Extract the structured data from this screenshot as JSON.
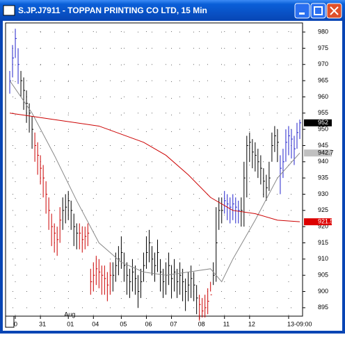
{
  "window": {
    "title": "S.JP.J7911 - TOPPAN PRINTING CO LTD, 15 Min"
  },
  "chart_data": {
    "type": "ohlc",
    "high": [
      968,
      976,
      981,
      975,
      968,
      966,
      962,
      958,
      954,
      949,
      946,
      942,
      939,
      934,
      929,
      924,
      921,
      920,
      926,
      929,
      930,
      931,
      928,
      924,
      921,
      921,
      920,
      920,
      921,
      907,
      909,
      911,
      910,
      908,
      908,
      906,
      909,
      909,
      912,
      914,
      917,
      912,
      909,
      907,
      910,
      908,
      905,
      907,
      912,
      917,
      919,
      914,
      912,
      916,
      910,
      907,
      909,
      912,
      908,
      910,
      907,
      909,
      907,
      904,
      906,
      908,
      906,
      902,
      899,
      898,
      899,
      901,
      903,
      909,
      926,
      929,
      929,
      931,
      930,
      929,
      930,
      929,
      928,
      929,
      940,
      948,
      949,
      947,
      946,
      944,
      942,
      938,
      936,
      940,
      949,
      951,
      950,
      942,
      944,
      950,
      951,
      950,
      948,
      952,
      953
    ],
    "low": [
      961,
      966,
      972,
      964,
      960,
      956,
      952,
      949,
      944,
      940,
      936,
      933,
      929,
      924,
      919,
      914,
      912,
      911,
      915,
      919,
      921,
      922,
      919,
      914,
      913,
      913,
      912,
      913,
      914,
      899,
      900,
      902,
      901,
      899,
      899,
      897,
      899,
      900,
      903,
      905,
      907,
      903,
      899,
      898,
      900,
      899,
      895,
      898,
      903,
      907,
      909,
      905,
      903,
      906,
      900,
      898,
      899,
      902,
      898,
      900,
      898,
      899,
      897,
      894,
      897,
      898,
      897,
      893,
      891,
      892,
      892,
      893,
      900,
      902,
      903,
      919,
      921,
      924,
      922,
      921,
      922,
      921,
      921,
      920,
      920,
      929,
      940,
      938,
      937,
      935,
      933,
      929,
      928,
      931,
      940,
      943,
      940,
      930,
      935,
      940,
      942,
      941,
      939,
      944,
      947
    ],
    "close": [
      965,
      972,
      978,
      970,
      965,
      962,
      958,
      955,
      950,
      945,
      942,
      938,
      935,
      930,
      925,
      920,
      918,
      916,
      922,
      925,
      926,
      928,
      925,
      920,
      918,
      918,
      916,
      917,
      918,
      903,
      905,
      907,
      906,
      905,
      904,
      902,
      905,
      905,
      908,
      910,
      912,
      908,
      905,
      903,
      906,
      904,
      900,
      903,
      908,
      912,
      915,
      910,
      908,
      912,
      906,
      903,
      905,
      908,
      904,
      906,
      903,
      905,
      903,
      900,
      902,
      904,
      902,
      898,
      896,
      894,
      895,
      897,
      899,
      905,
      915,
      925,
      925,
      928,
      927,
      926,
      927,
      926,
      925,
      925,
      935,
      945,
      946,
      943,
      942,
      940,
      938,
      934,
      932,
      935,
      945,
      948,
      946,
      938,
      940,
      946,
      948,
      947,
      944,
      949,
      952
    ],
    "bar_colors": [
      "#22c",
      "#22c",
      "#22c",
      "#22c",
      "#000",
      "#000",
      "#000",
      "#000",
      "#000",
      "#c00",
      "#c00",
      "#c00",
      "#c00",
      "#c00",
      "#c00",
      "#c00",
      "#c00",
      "#c00",
      "#c00",
      "#000",
      "#000",
      "#000",
      "#000",
      "#000",
      "#000",
      "#c00",
      "#c00",
      "#c00",
      "#c00",
      "#c00",
      "#c00",
      "#c00",
      "#c00",
      "#c00",
      "#c00",
      "#c00",
      "#c00",
      "#000",
      "#000",
      "#000",
      "#000",
      "#000",
      "#000",
      "#000",
      "#000",
      "#000",
      "#000",
      "#000",
      "#000",
      "#000",
      "#000",
      "#000",
      "#000",
      "#000",
      "#000",
      "#000",
      "#000",
      "#000",
      "#000",
      "#000",
      "#000",
      "#000",
      "#000",
      "#000",
      "#000",
      "#000",
      "#000",
      "#000",
      "#c00",
      "#c00",
      "#c00",
      "#c00",
      "#c00",
      "#000",
      "#000",
      "#000",
      "#000",
      "#22c",
      "#22c",
      "#22c",
      "#22c",
      "#22c",
      "#22c",
      "#000",
      "#000",
      "#000",
      "#000",
      "#000",
      "#000",
      "#000",
      "#000",
      "#000",
      "#000",
      "#000",
      "#000",
      "#000",
      "#000",
      "#22c",
      "#22c",
      "#22c",
      "#22c",
      "#22c",
      "#22c",
      "#22c",
      "#22c"
    ],
    "series": [
      {
        "color": "#888888",
        "label_bg": "#c0c0c0",
        "x": [
          0,
          8,
          16,
          24,
          32,
          40,
          48,
          56,
          64,
          72,
          76,
          80,
          88,
          96,
          104
        ],
        "values": [
          965,
          955,
          942,
          928,
          915,
          909,
          906,
          905,
          906,
          907,
          903,
          910,
          922,
          935,
          942.7
        ]
      },
      {
        "color": "#cc0000",
        "label_bg": "#dd0000",
        "x": [
          0,
          16,
          32,
          48,
          56,
          64,
          72,
          80,
          88,
          96,
          104
        ],
        "values": [
          955,
          953,
          951,
          946,
          942,
          936,
          929,
          925,
          924,
          922,
          921.5
        ]
      }
    ],
    "ylim": [
      892.4,
      982.8
    ],
    "yticks": [
      895,
      900,
      905,
      910,
      915,
      920,
      925,
      930,
      935,
      940,
      945,
      950,
      955,
      960,
      965,
      970,
      975,
      980
    ],
    "xlim": [
      -1.5,
      105
    ],
    "xticks": [
      {
        "value": 2,
        "label": "0"
      },
      {
        "value": 11,
        "label": "31"
      },
      {
        "value": 21,
        "label": "01"
      },
      {
        "value": 30,
        "label": "04"
      },
      {
        "value": 40,
        "label": "05"
      },
      {
        "value": 49,
        "label": "06"
      },
      {
        "value": 58,
        "label": "07"
      },
      {
        "value": 68,
        "label": "08"
      },
      {
        "value": 77,
        "label": "11"
      },
      {
        "value": 86,
        "label": "12"
      },
      {
        "value": 100,
        "label": "13-09:00"
      }
    ],
    "annotations": [
      {
        "value": 21,
        "label": "Aug"
      }
    ],
    "grid": true
  }
}
